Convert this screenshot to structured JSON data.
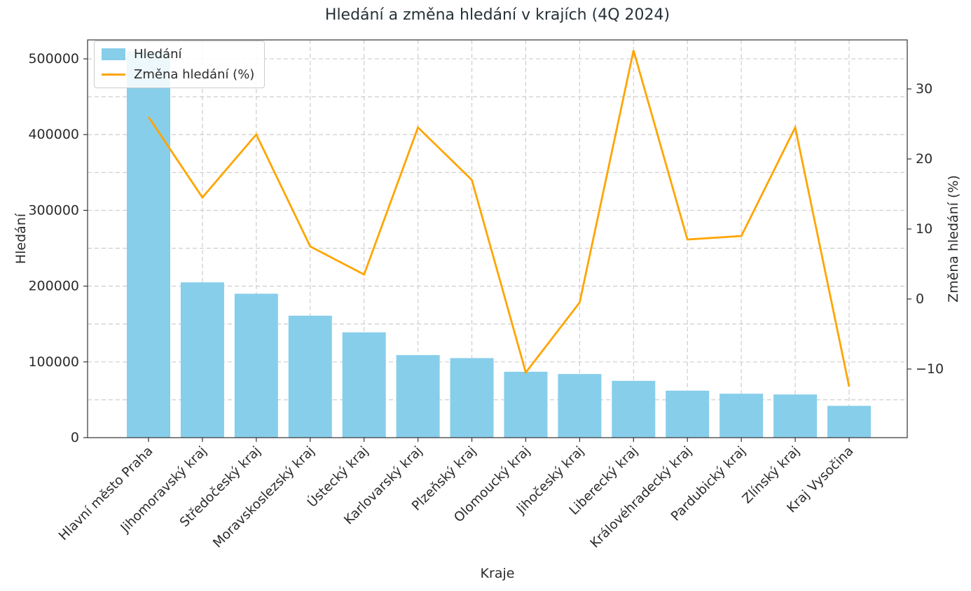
{
  "title": "Hledání a změna hledání v krajích (4Q 2024)",
  "legend": {
    "position": "upper left",
    "entries": [
      {
        "label": "Hledání",
        "marker": "bar-swatch",
        "color": "#87CEEB"
      },
      {
        "label": "Změna hledání (%)",
        "marker": "line-swatch",
        "color": "#FFA500"
      }
    ]
  },
  "chart_data": {
    "type": "combo-bar-line",
    "title": "Hledání a změna hledání v krajích (4Q 2024)",
    "xlabel": "Kraje",
    "ylabel_left": "Hledání",
    "ylabel_right": "Změna hledání (%)",
    "categories": [
      "Hlavní město Praha",
      "Jihomoravský kraj",
      "Středočeský kraj",
      "Moravskoslezský kraj",
      "Ústecký kraj",
      "Karlovarský kraj",
      "Plzeňský kraj",
      "Olomoucký kraj",
      "Jihočeský kraj",
      "Liberecký kraj",
      "Královéhradecký kraj",
      "Pardubický kraj",
      "Zlínský kraj",
      "Kraj Vysočina"
    ],
    "series": [
      {
        "name": "Hledání",
        "type": "bar",
        "axis": "left",
        "color": "#87CEEB",
        "values": [
          510000,
          205000,
          190000,
          161000,
          139000,
          109000,
          105000,
          87000,
          84000,
          75000,
          62000,
          58000,
          57000,
          42000
        ]
      },
      {
        "name": "Změna hledání (%)",
        "type": "line",
        "axis": "right",
        "color": "#FFA500",
        "values": [
          26,
          14.5,
          23.5,
          7.5,
          3.5,
          24.5,
          17,
          -10.5,
          -0.5,
          35.5,
          8.5,
          9,
          24.5,
          -12.5
        ]
      }
    ],
    "ylim_left": [
      0,
      525000
    ],
    "ylim_right": [
      -19.8,
      37.0
    ],
    "yticks_left": [
      0,
      100000,
      200000,
      300000,
      400000,
      500000
    ],
    "yticks_right": [
      -10,
      0,
      10,
      20,
      30
    ],
    "grid": true,
    "grid_left_interval": 50000,
    "grid_color": "#cdcdcd",
    "spine_color": "#333333",
    "tick_label_color": "#2b2b2b",
    "x_tick_rotation": 45
  }
}
